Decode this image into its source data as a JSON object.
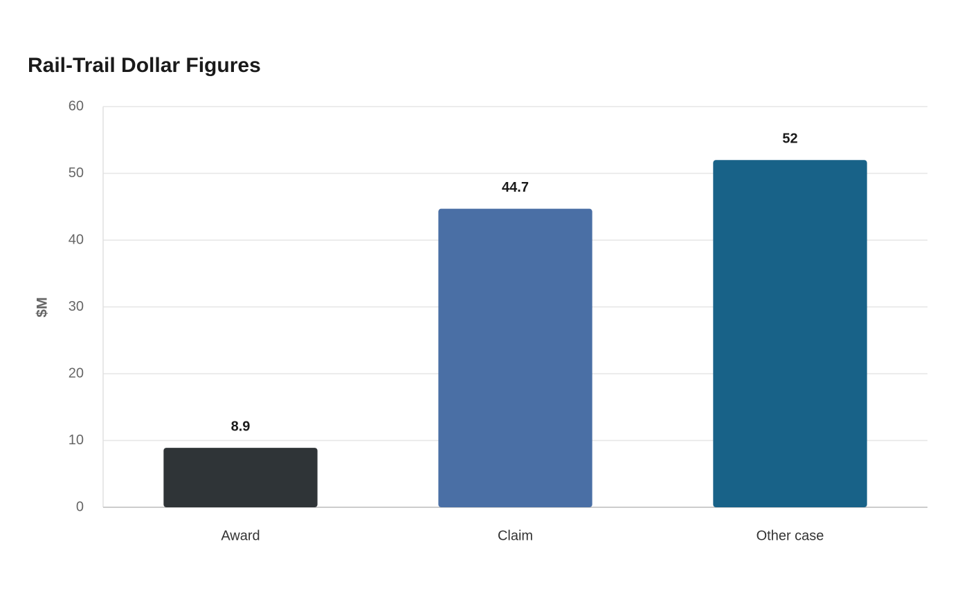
{
  "chart_data": {
    "type": "bar",
    "title": "Rail-Trail Dollar Figures",
    "y_label": "$M",
    "categories": [
      "Award",
      "Claim",
      "Other case"
    ],
    "values": [
      8.9,
      44.7,
      52
    ],
    "colors": [
      "#2f3437",
      "#4a6fa5",
      "#186288"
    ],
    "ylim": [
      0,
      60
    ],
    "yticks": [
      0,
      10,
      20,
      30,
      40,
      50,
      60
    ],
    "grid": true
  }
}
